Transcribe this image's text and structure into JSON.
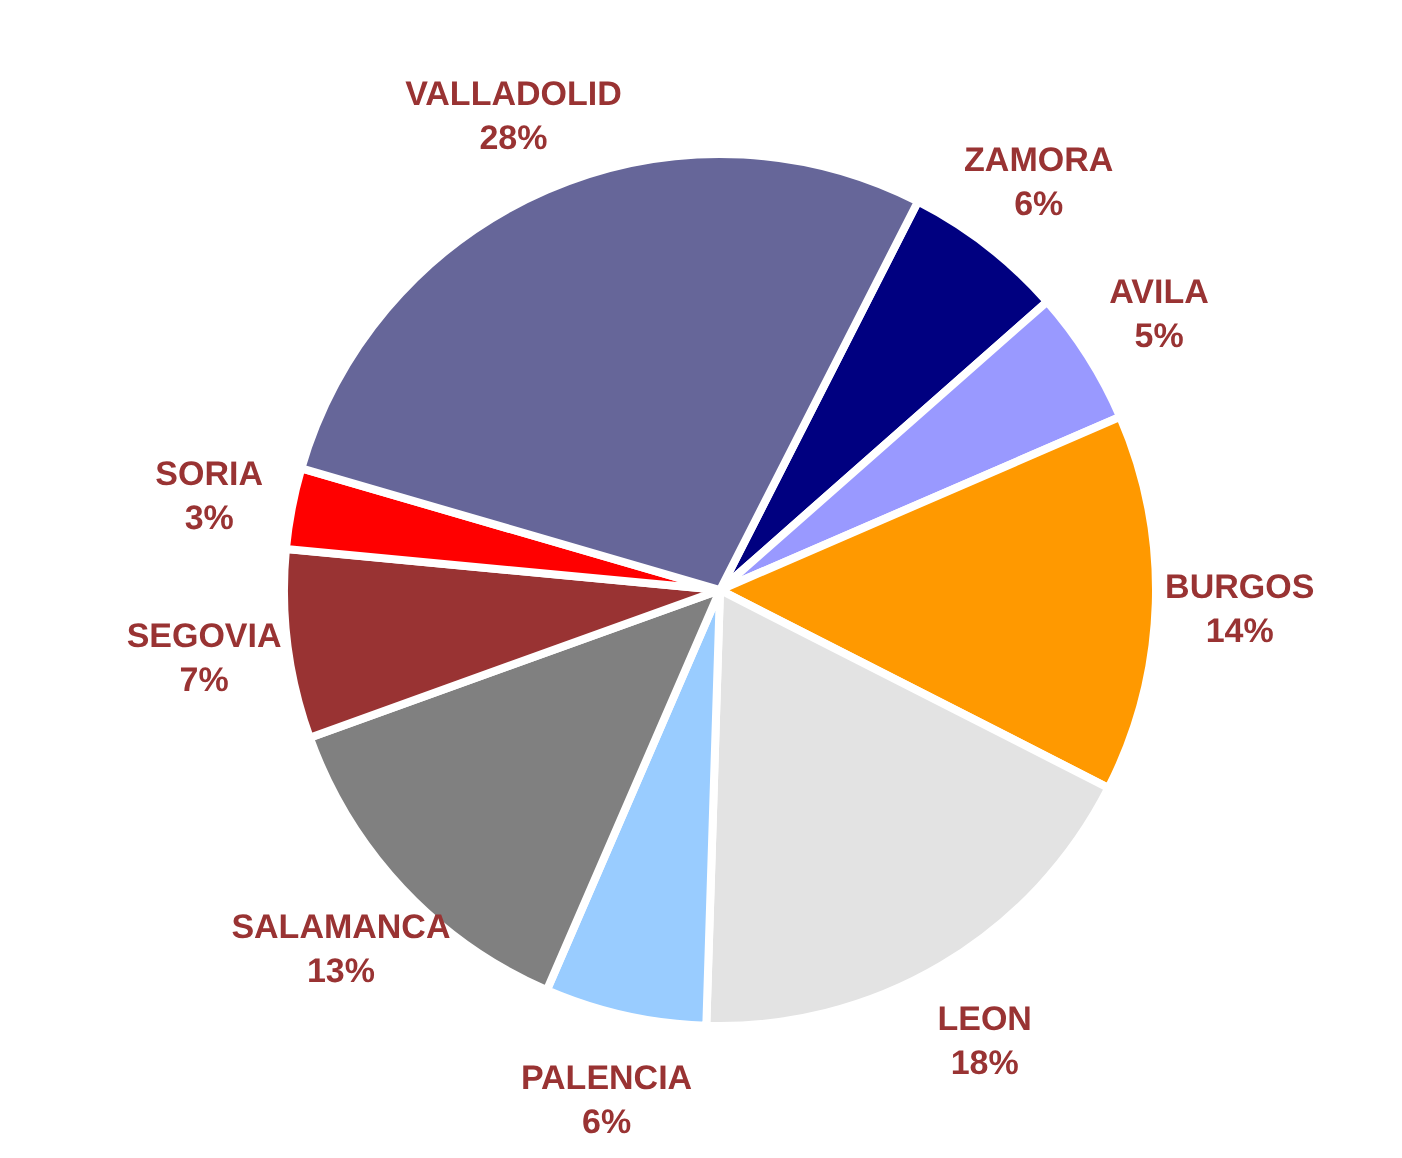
{
  "chart_data": {
    "type": "pie",
    "categories": [
      "ZAMORA",
      "AVILA",
      "BURGOS",
      "LEON",
      "PALENCIA",
      "SALAMANCA",
      "SEGOVIA",
      "SORIA",
      "VALLADOLID"
    ],
    "values": [
      6,
      5,
      14,
      18,
      6,
      13,
      7,
      3,
      28
    ],
    "colors": [
      "#000080",
      "#9999ff",
      "#ff9900",
      "#e3e3e3",
      "#99ccff",
      "#808080",
      "#993333",
      "#ff0000",
      "#666699"
    ],
    "value_labels": [
      "6%",
      "5%",
      "14%",
      "18%",
      "6%",
      "13%",
      "7%",
      "3%",
      "28%"
    ],
    "legend": false
  }
}
